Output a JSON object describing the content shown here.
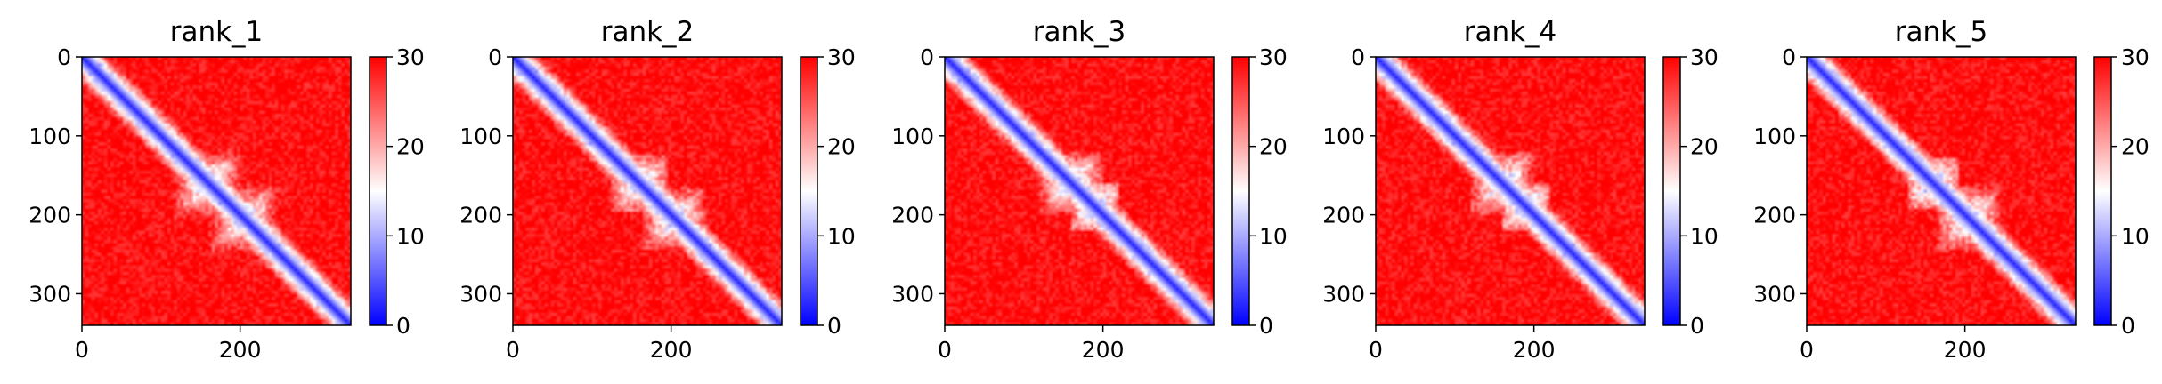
{
  "chart_data": [
    {
      "type": "heatmap",
      "title": "rank_1",
      "n": 340,
      "xticks": [
        0,
        200
      ],
      "yticks": [
        0,
        100,
        200,
        300
      ],
      "clim": [
        0,
        30
      ],
      "cbar_ticks": [
        0,
        10,
        20,
        30
      ],
      "colormap": [
        "#0000ff",
        "#ffffff",
        "#ff0000"
      ],
      "clusters": [
        [
          160,
          20
        ],
        [
          205,
          26
        ]
      ]
    },
    {
      "type": "heatmap",
      "title": "rank_2",
      "n": 340,
      "xticks": [
        0,
        200
      ],
      "yticks": [
        0,
        100,
        200,
        300
      ],
      "clim": [
        0,
        30
      ],
      "cbar_ticks": [
        0,
        10,
        20,
        30
      ],
      "colormap": [
        "#0000ff",
        "#ffffff",
        "#ff0000"
      ],
      "clusters": [
        [
          160,
          16
        ],
        [
          205,
          18
        ]
      ]
    },
    {
      "type": "heatmap",
      "title": "rank_3",
      "n": 340,
      "xticks": [
        0,
        200
      ],
      "yticks": [
        0,
        100,
        200,
        300
      ],
      "clim": [
        0,
        30
      ],
      "cbar_ticks": [
        0,
        10,
        20,
        30
      ],
      "colormap": [
        "#0000ff",
        "#ffffff",
        "#ff0000"
      ],
      "clusters": [
        [
          160,
          18
        ],
        [
          190,
          14
        ]
      ]
    },
    {
      "type": "heatmap",
      "title": "rank_4",
      "n": 340,
      "xticks": [
        0,
        200
      ],
      "yticks": [
        0,
        100,
        200,
        300
      ],
      "clim": [
        0,
        30
      ],
      "cbar_ticks": [
        0,
        10,
        20,
        30
      ],
      "colormap": [
        "#0000ff",
        "#ffffff",
        "#ff0000"
      ],
      "clusters": [
        [
          160,
          18
        ],
        [
          190,
          14
        ]
      ]
    },
    {
      "type": "heatmap",
      "title": "rank_5",
      "n": 340,
      "xticks": [
        0,
        200
      ],
      "yticks": [
        0,
        100,
        200,
        300
      ],
      "clim": [
        0,
        30
      ],
      "cbar_ticks": [
        0,
        10,
        20,
        30
      ],
      "colormap": [
        "#0000ff",
        "#ffffff",
        "#ff0000"
      ],
      "clusters": [
        [
          160,
          14
        ],
        [
          205,
          22
        ]
      ]
    }
  ]
}
